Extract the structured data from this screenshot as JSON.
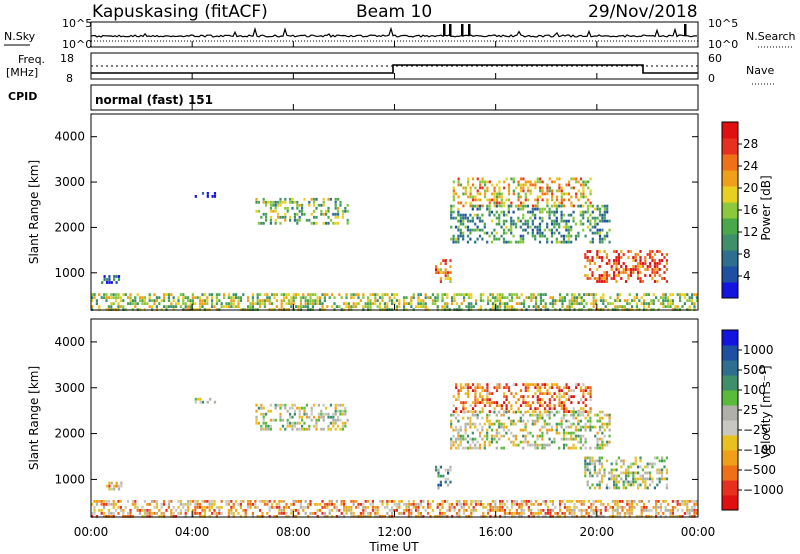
{
  "header": {
    "station": "Kapuskasing (fitACF)",
    "beam": "Beam 10",
    "date": "29/Nov/2018"
  },
  "top_panels": {
    "noise": {
      "left_label": "N.Sky",
      "left_ticks": [
        "10^5",
        "10^0"
      ],
      "right_label": "N.Search",
      "right_ticks": [
        "10^5",
        "10^0"
      ]
    },
    "freq": {
      "left_label_1": "Freq.",
      "left_label_2": "[MHz]",
      "left_ticks": [
        "18",
        "8"
      ],
      "right_label": "Nave",
      "right_ticks": [
        "60",
        "0"
      ]
    },
    "cpid": {
      "label": "CPID",
      "text": "normal (fast) 151"
    }
  },
  "colors": {
    "power_scale": [
      "#1414e0",
      "#1e4fa0",
      "#2e6e8e",
      "#3f8f6a",
      "#49a84a",
      "#8cc83c",
      "#e8d020",
      "#f0a018",
      "#f07018",
      "#e83020",
      "#e01010"
    ],
    "velocity_scale": [
      "#1414e0",
      "#1e4fa0",
      "#2e6e8e",
      "#3f8f6a",
      "#5aba3a",
      "#b0b0a8",
      "#c8c8c0",
      "#e8c020",
      "#f0a018",
      "#f07018",
      "#e83020",
      "#e01010"
    ]
  },
  "chart_data": [
    {
      "type": "heatmap",
      "title": "",
      "xlabel": "",
      "ylabel": "Slant Range [km]",
      "x_ticks": [
        "00:00",
        "04:00",
        "08:00",
        "12:00",
        "16:00",
        "20:00",
        "00:00"
      ],
      "y_ticks": [
        "1000",
        "2000",
        "3000",
        "4000"
      ],
      "xlim": [
        0,
        24
      ],
      "ylim": [
        180,
        4500
      ],
      "colorbar": {
        "label": "Power [dB]",
        "ticks": [
          "4",
          "8",
          "12",
          "16",
          "20",
          "24",
          "28"
        ],
        "range": [
          0,
          30
        ]
      },
      "regions": [
        {
          "t0": 6.5,
          "t1": 10.2,
          "r0": 2100,
          "r1": 2650,
          "level": 0.45
        },
        {
          "t0": 4.1,
          "t1": 4.9,
          "r0": 2650,
          "r1": 2780,
          "level": 0.15
        },
        {
          "t0": 14.3,
          "t1": 19.8,
          "r0": 2500,
          "r1": 3100,
          "level": 0.65
        },
        {
          "t0": 14.2,
          "t1": 20.5,
          "r0": 1700,
          "r1": 2500,
          "level": 0.35
        },
        {
          "t0": 19.5,
          "t1": 22.8,
          "r0": 800,
          "r1": 1500,
          "level": 0.85
        },
        {
          "t0": 13.6,
          "t1": 14.2,
          "r0": 800,
          "r1": 1300,
          "level": 0.75
        },
        {
          "t0": 0.0,
          "t1": 24.0,
          "r0": 200,
          "r1": 550,
          "level": 0.5
        },
        {
          "t0": 0.4,
          "t1": 1.2,
          "r0": 800,
          "r1": 950,
          "level": 0.2
        }
      ]
    },
    {
      "type": "heatmap",
      "title": "",
      "xlabel": "Time UT",
      "ylabel": "Slant Range [km]",
      "x_ticks": [
        "00:00",
        "04:00",
        "08:00",
        "12:00",
        "16:00",
        "20:00",
        "00:00"
      ],
      "y_ticks": [
        "1000",
        "2000",
        "3000",
        "4000"
      ],
      "xlim": [
        0,
        24
      ],
      "ylim": [
        180,
        4500
      ],
      "colorbar": {
        "label": "Velocity [m s⁻¹]",
        "ticks": [
          "1000",
          "500",
          "100",
          "25",
          "−25",
          "−100",
          "−500",
          "−1000"
        ],
        "range": [
          -1000,
          1000
        ]
      },
      "regions": [
        {
          "t0": 6.5,
          "t1": 10.2,
          "r0": 2100,
          "r1": 2650,
          "level": 0.5
        },
        {
          "t0": 4.1,
          "t1": 4.9,
          "r0": 2650,
          "r1": 2780,
          "level": 0.5
        },
        {
          "t0": 14.3,
          "t1": 19.8,
          "r0": 2500,
          "r1": 3100,
          "level": 0.78
        },
        {
          "t0": 14.2,
          "t1": 20.5,
          "r0": 1700,
          "r1": 2500,
          "level": 0.5
        },
        {
          "t0": 19.5,
          "t1": 22.8,
          "r0": 800,
          "r1": 1500,
          "level": 0.45
        },
        {
          "t0": 13.6,
          "t1": 14.2,
          "r0": 800,
          "r1": 1300,
          "level": 0.35
        },
        {
          "t0": 0.0,
          "t1": 24.0,
          "r0": 200,
          "r1": 550,
          "level": 0.68
        },
        {
          "t0": 0.4,
          "t1": 1.2,
          "r0": 800,
          "r1": 950,
          "level": 0.65
        }
      ]
    }
  ]
}
